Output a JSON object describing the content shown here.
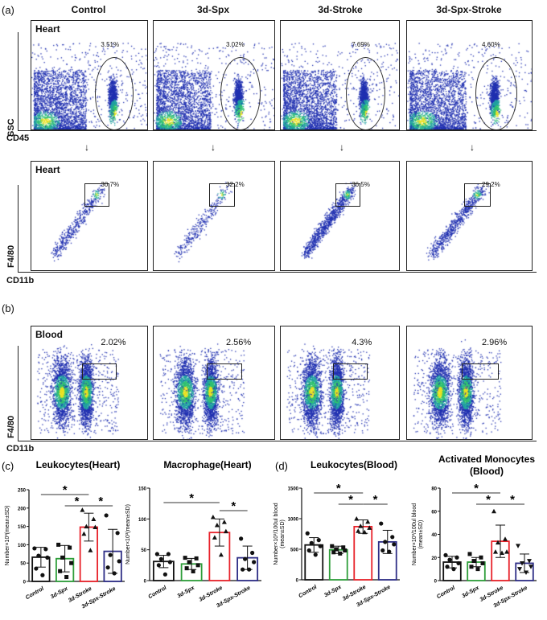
{
  "panel_labels": {
    "a": "(a)",
    "b": "(b)",
    "c": "(c)",
    "d": "(d)"
  },
  "groups": [
    "Control",
    "3d-Spx",
    "3d-Stroke",
    "3d-Spx-Stroke"
  ],
  "axis_labels": {
    "ssc": "SSC",
    "cd45": "CD45",
    "f480": "F4/80",
    "cd11b": "CD11b"
  },
  "tissues": {
    "heart": "Heart",
    "blood": "Blood"
  },
  "flow_rows": [
    {
      "tissue": "Heart",
      "x_axis": "CD45",
      "y_axis": "SSC",
      "gate": "ellipse",
      "percents": [
        "3.51%",
        "3.02%",
        "7.69%",
        "4.60%"
      ]
    },
    {
      "tissue": "Heart",
      "x_axis": "CD11b",
      "y_axis": "F4/80",
      "gate": "rectangle",
      "percents": [
        "30.7%",
        "32.2%",
        "36.5%",
        "29.2%"
      ]
    },
    {
      "tissue": "Blood",
      "x_axis": "CD11b",
      "y_axis": "F4/80",
      "gate": "rectangle",
      "percents": [
        "2.02%",
        "2.56%",
        "4.3%",
        "2.96%"
      ]
    }
  ],
  "colors": {
    "Control": "#111111",
    "3d-Spx": "#2e9e3a",
    "3d-Stroke": "#e8222a",
    "3d-Spx-Stroke": "#2e2e86"
  },
  "chart_data": [
    {
      "type": "bar",
      "panel": "(c)",
      "title": "Leukocytes(Heart)",
      "ylabel": "Number×10³(mean±SD)",
      "categories": [
        "Control",
        "3d-Spx",
        "3d-Stroke",
        "3d-Spx-Stroke"
      ],
      "values": [
        66,
        62,
        148,
        82
      ],
      "sd": [
        27,
        36,
        38,
        60
      ],
      "ylim": [
        0,
        250
      ],
      "yticks": [
        0,
        50,
        100,
        150,
        200,
        250
      ],
      "points": [
        [
          90,
          88,
          70,
          65,
          35,
          17
        ],
        [
          100,
          92,
          65,
          50,
          28,
          12
        ],
        [
          195,
          170,
          150,
          148,
          130,
          85
        ],
        [
          180,
          132,
          72,
          55,
          38,
          22
        ]
      ],
      "markers": [
        "circle",
        "square",
        "triangle",
        "circle"
      ],
      "significance": [
        [
          0,
          2,
          "*"
        ],
        [
          1,
          2,
          "*"
        ],
        [
          2,
          3,
          "*"
        ]
      ]
    },
    {
      "type": "bar",
      "panel": "",
      "title": "Macrophage(Heart)",
      "ylabel": "Number×10³(mean±SD)",
      "categories": [
        "Control",
        "3d-Spx",
        "3d-Stroke",
        "3d-Spx-Stroke"
      ],
      "values": [
        31,
        27,
        78,
        37
      ],
      "sd": [
        10,
        9,
        22,
        19
      ],
      "ylim": [
        0,
        150
      ],
      "yticks": [
        0,
        50,
        100,
        150
      ],
      "points": [
        [
          43,
          43,
          35,
          30,
          25,
          10
        ],
        [
          37,
          36,
          30,
          25,
          20,
          15
        ],
        [
          103,
          95,
          90,
          80,
          70,
          42
        ],
        [
          68,
          45,
          35,
          30,
          18,
          18
        ]
      ],
      "markers": [
        "circle",
        "square",
        "triangle",
        "circle"
      ],
      "significance": [
        [
          0,
          2,
          "*"
        ],
        [
          2,
          3,
          "*"
        ]
      ]
    },
    {
      "type": "bar",
      "panel": "(d)",
      "title": "Leukocytes(Blood)",
      "ylabel": "Number×10³/100ul blood (mean±SD)",
      "categories": [
        "Control",
        "3d-Spx",
        "3d-Stroke",
        "3d-Spx-Stroke"
      ],
      "values": [
        570,
        490,
        870,
        620
      ],
      "sd": [
        120,
        60,
        110,
        190
      ],
      "ylim": [
        0,
        1500
      ],
      "yticks": [
        0,
        500,
        1000,
        1500
      ],
      "points": [
        [
          760,
          650,
          600,
          550,
          480,
          410
        ],
        [
          550,
          530,
          500,
          480,
          450,
          430
        ],
        [
          1000,
          950,
          880,
          850,
          800,
          780
        ],
        [
          920,
          700,
          620,
          580,
          480,
          460
        ]
      ],
      "markers": [
        "circle",
        "square",
        "triangle",
        "circle"
      ],
      "significance": [
        [
          0,
          2,
          "*"
        ],
        [
          1,
          2,
          "*"
        ],
        [
          2,
          3,
          "*"
        ]
      ]
    },
    {
      "type": "bar",
      "panel": "",
      "title": "Activated Monocytes (Blood)",
      "ylabel": "Number×10³/100ul blood (mean±SD)",
      "categories": [
        "Control",
        "3d-Spx",
        "3d-Stroke",
        "3d-Spx-Stroke"
      ],
      "values": [
        16,
        16,
        34,
        15
      ],
      "sd": [
        5,
        4,
        14,
        8
      ],
      "ylim": [
        0,
        80
      ],
      "yticks": [
        0,
        20,
        40,
        60,
        80
      ],
      "points": [
        [
          22,
          20,
          18,
          15,
          12,
          10
        ],
        [
          23,
          20,
          17,
          15,
          12,
          10
        ],
        [
          60,
          36,
          33,
          25,
          25,
          24
        ],
        [
          30,
          17,
          15,
          12,
          10,
          7
        ]
      ],
      "markers": [
        "circle",
        "square",
        "triangle",
        "triangle-down"
      ],
      "significance": [
        [
          0,
          2,
          "*"
        ],
        [
          1,
          2,
          "*"
        ],
        [
          2,
          3,
          "*"
        ]
      ]
    }
  ]
}
